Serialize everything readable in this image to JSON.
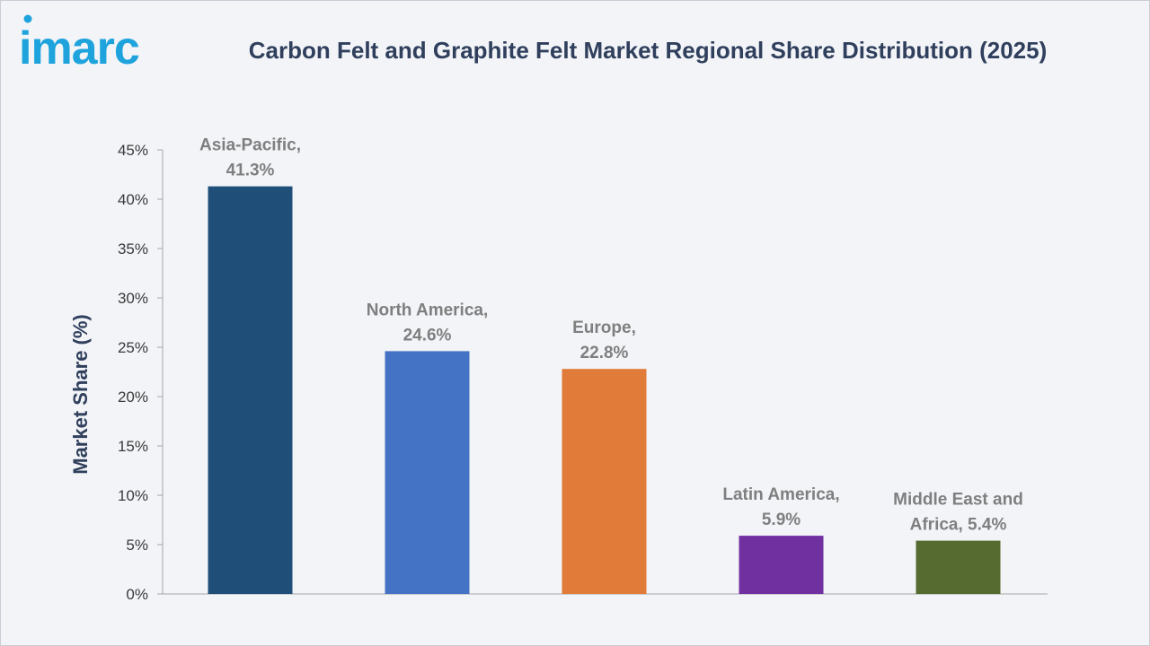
{
  "brand": {
    "logo_text": "imarc",
    "logo_color": "#1fa3dc"
  },
  "chart_data": {
    "type": "bar",
    "title": "Carbon Felt and Graphite Felt Market Regional Share Distribution (2025)",
    "xlabel": "",
    "ylabel": "Market Share (%)",
    "ylim": [
      0,
      45
    ],
    "yticks": [
      0,
      5,
      10,
      15,
      20,
      25,
      30,
      35,
      40,
      45
    ],
    "ytick_labels": [
      "0%",
      "5%",
      "10%",
      "15%",
      "20%",
      "25%",
      "30%",
      "35%",
      "40%",
      "45%"
    ],
    "grid": false,
    "categories": [
      "Asia-Pacific",
      "North America",
      "Europe",
      "Latin America",
      "Middle East and Africa"
    ],
    "values": [
      41.3,
      24.6,
      22.8,
      5.9,
      5.4
    ],
    "data_labels": [
      [
        "Asia-Pacific,",
        "41.3%"
      ],
      [
        "North America,",
        "24.6%"
      ],
      [
        "Europe,",
        "22.8%"
      ],
      [
        "Latin America,",
        "5.9%"
      ],
      [
        "Middle East and",
        "Africa, 5.4%"
      ]
    ],
    "colors": [
      "#1f4e79",
      "#4472c4",
      "#e07b39",
      "#7030a0",
      "#556b2f"
    ]
  }
}
